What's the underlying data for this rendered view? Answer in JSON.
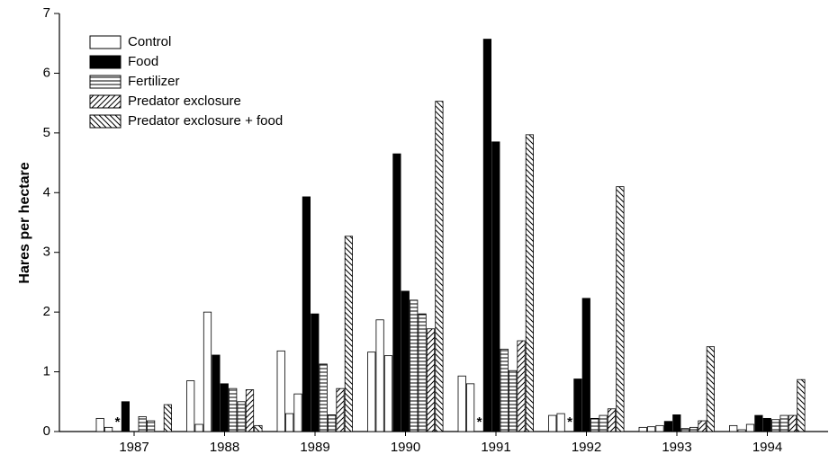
{
  "chart_data": {
    "type": "bar",
    "y_label": "Hares per hectare",
    "categories": [
      "1987",
      "1988",
      "1989",
      "1990",
      "1991",
      "1992",
      "1993",
      "1994"
    ],
    "missing_marker": "*",
    "series": [
      {
        "name": "Control",
        "pattern": "empty",
        "color": "#000000",
        "values": [
          [
            0.22,
            0.07,
            null
          ],
          [
            0.85,
            0.12,
            2.0
          ],
          [
            1.35,
            0.3,
            0.63
          ],
          [
            1.33,
            1.87,
            1.27
          ],
          [
            0.93,
            0.8,
            null
          ],
          [
            0.27,
            0.3,
            null
          ],
          [
            0.07,
            0.08,
            0.1
          ],
          [
            0.1,
            0.03,
            0.12
          ]
        ]
      },
      {
        "name": "Food",
        "pattern": "solid",
        "color": "#000000",
        "values": [
          [
            0.5,
            null
          ],
          [
            1.28,
            0.8
          ],
          [
            3.93,
            1.97
          ],
          [
            4.65,
            2.35
          ],
          [
            6.57,
            4.85
          ],
          [
            0.88,
            2.23
          ],
          [
            0.17,
            0.28
          ],
          [
            0.27,
            0.22
          ]
        ]
      },
      {
        "name": "Fertilizer",
        "pattern": "hlines",
        "color": "#000000",
        "values": [
          [
            0.25,
            0.18
          ],
          [
            0.72,
            0.5
          ],
          [
            1.13,
            0.28
          ],
          [
            2.2,
            1.97
          ],
          [
            1.38,
            1.02
          ],
          [
            0.22,
            0.27
          ],
          [
            0.05,
            0.07
          ],
          [
            0.2,
            0.27
          ]
        ]
      },
      {
        "name": "Predator exclosure",
        "pattern": "diag-up",
        "color": "#000000",
        "values": [
          [
            null
          ],
          [
            0.7
          ],
          [
            0.72
          ],
          [
            1.72
          ],
          [
            1.52
          ],
          [
            0.38
          ],
          [
            0.18
          ],
          [
            0.27
          ]
        ]
      },
      {
        "name": "Predator exclosure + food",
        "pattern": "diag-down",
        "color": "#000000",
        "values": [
          [
            0.45
          ],
          [
            0.1
          ],
          [
            3.27
          ],
          [
            5.53
          ],
          [
            4.97
          ],
          [
            4.1
          ],
          [
            1.42
          ],
          [
            0.87
          ]
        ]
      }
    ],
    "ylim": [
      0,
      7
    ],
    "yticks": [
      0,
      1,
      2,
      3,
      4,
      5,
      6,
      7
    ],
    "grid": false,
    "legend": "top-left"
  }
}
